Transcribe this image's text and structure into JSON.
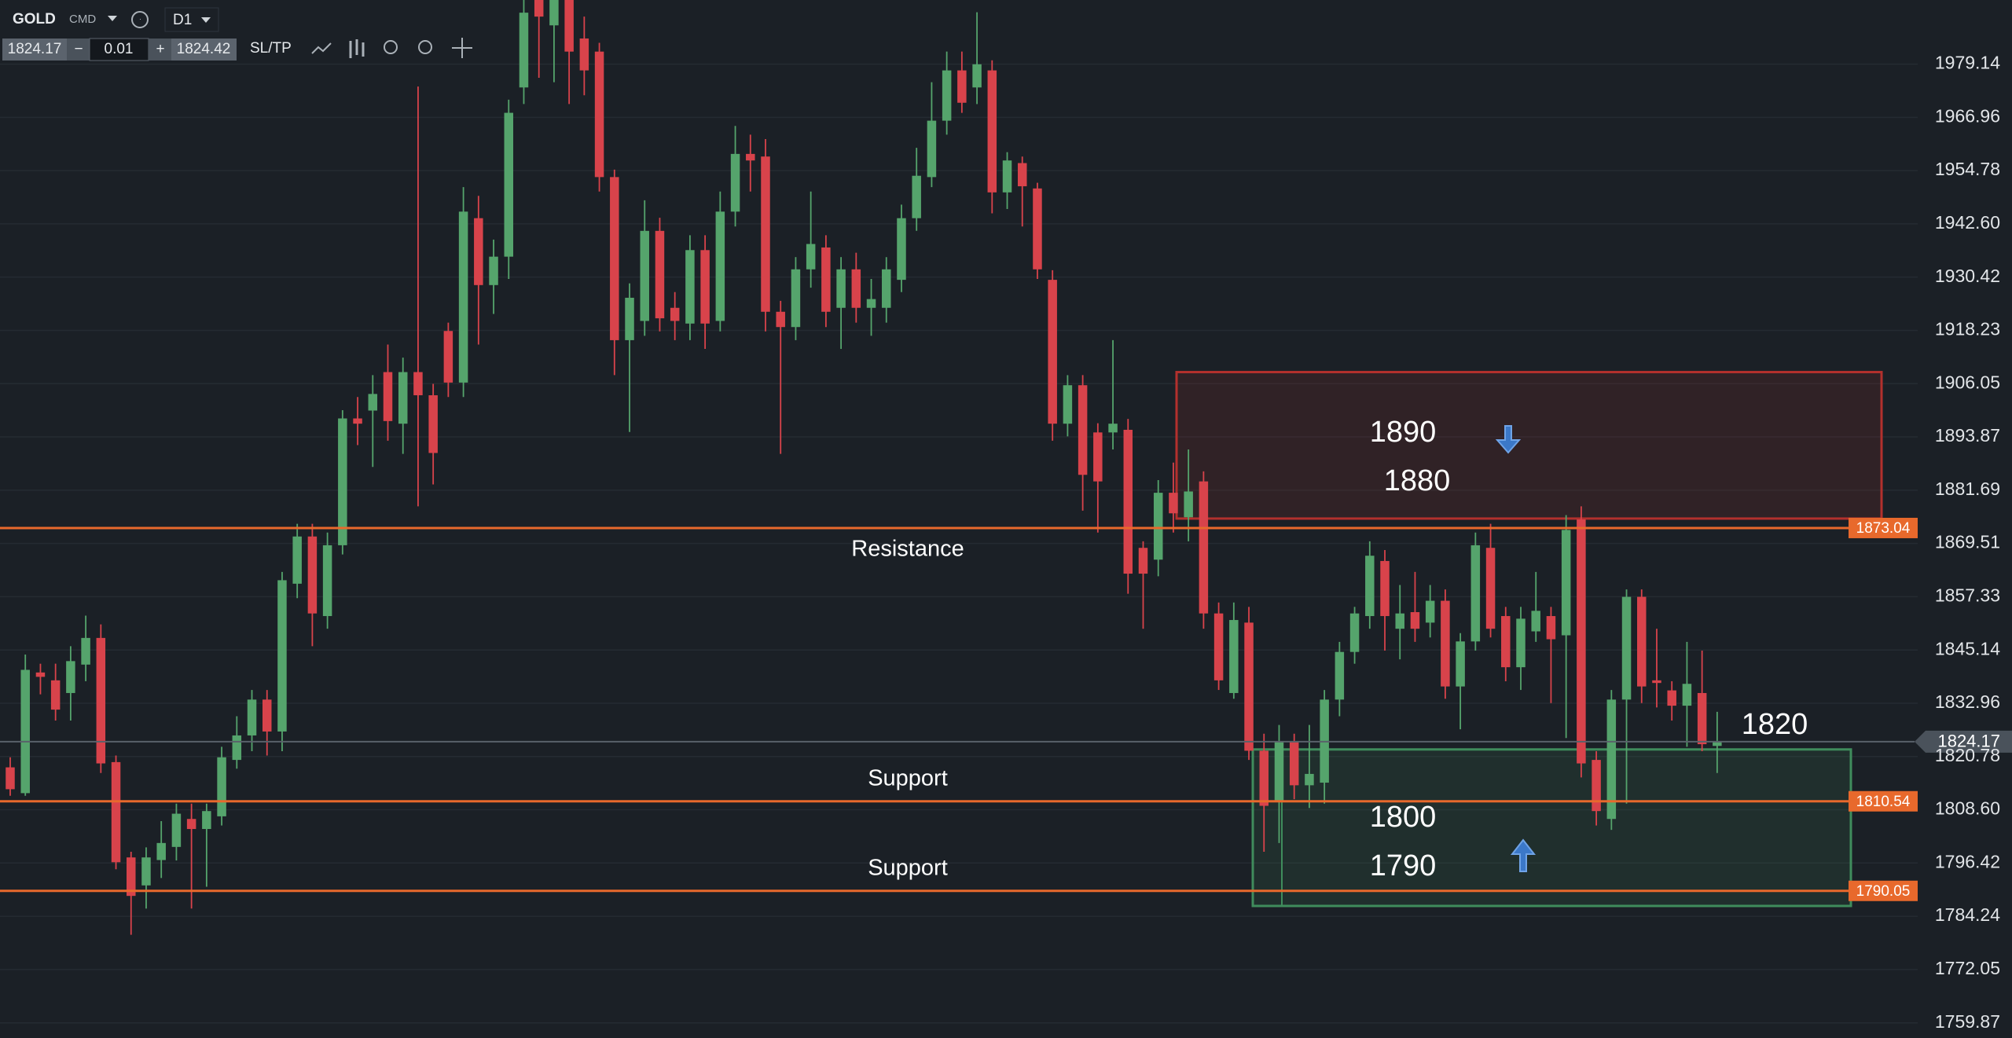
{
  "toolbar": {
    "symbol": "GOLD",
    "kind": "CMD",
    "timeframe": "D1",
    "bid": "1824.17",
    "minus": "−",
    "lot": "0.01",
    "plus": "+",
    "ask": "1824.42",
    "sltp": "SL/TP"
  },
  "chart_data": {
    "type": "candlestick",
    "up_color": "#55a46c",
    "down_color": "#d8434b",
    "grid": true,
    "ylim": [
      1756.4,
      1993.8
    ],
    "yticks": [
      1979.14,
      1966.96,
      1954.78,
      {
        "value": 1942.6,
        "label": "1942.60"
      },
      1930.42,
      1918.23,
      1906.05,
      1893.87,
      1881.69,
      1869.51,
      1857.33,
      1845.14,
      1832.96,
      1820.78,
      {
        "value": 1808.6,
        "label": "1808.60"
      },
      1796.42,
      1784.24,
      1772.05,
      1759.87
    ],
    "open": [
      1818.3,
      1812.4,
      1840,
      1838.2,
      1835.3,
      1841.8,
      1847.9,
      1819.5,
      1797.7,
      1791.3,
      1797.1,
      1800.1,
      1806.5,
      1804.2,
      1807.1,
      1820,
      1825.6,
      1833.8,
      1826.5,
      1860.3,
      1871.1,
      1852.9,
      1869.1,
      1898.1,
      1899.9,
      1908.7,
      1896.9,
      1908.7,
      1903.4,
      1918.1,
      1906.3,
      1943.9,
      1928.6,
      1935.1,
      1973.8,
      1996,
      1988,
      1996,
      1985,
      1982,
      1953.3,
      1916,
      1920.4,
      1941,
      1923.4,
      1919.8,
      1936.6,
      1920.4,
      1945.4,
      1958.6,
      1958,
      1922.5,
      1919,
      1932.2,
      1937.2,
      1923.4,
      1932.2,
      1923.4,
      1923.4,
      1929.8,
      1943.9,
      1953.3,
      1966.2,
      1977.7,
      1973.8,
      1977.7,
      1949.8,
      1956.5,
      1950.7,
      1929.8,
      1896.9,
      1905.7,
      1894.9,
      1894.9,
      1895.5,
      1868.5,
      1865.8,
      1881.1,
      1875.5,
      1883.7,
      1853.5,
      1835.3,
      1851.4,
      1822.1,
      1810.4,
      1824.1,
      1814.2,
      1814.8,
      1833.8,
      1844.7,
      1852.9,
      1865.5,
      1850,
      1853.8,
      1851.4,
      1856.4,
      1836.8,
      1847.1,
      1868.5,
      1852.9,
      1841.2,
      1849.4,
      1852.9,
      1848.5,
      1875,
      1820,
      1806.5,
      1833.8,
      1857.3,
      1838.2,
      1835.9,
      1832.4,
      1835.3,
      1823.2
    ],
    "high": [
      1820.6,
      1844.1,
      1842,
      1842,
      1846,
      1853,
      1851,
      1821,
      1799,
      1800,
      1806,
      1810,
      1810,
      1810,
      1823,
      1830,
      1836,
      1836,
      1863,
      1874,
      1874,
      1872,
      1900,
      1903,
      1908,
      1915,
      1912,
      1974,
      1906,
      1920,
      1951,
      1949,
      1939,
      1971,
      1996,
      2000,
      1998,
      2000,
      1990,
      1984,
      1955,
      1929,
      1948,
      1944,
      1927,
      1940,
      1940,
      1950,
      1965,
      1963,
      1962,
      1925,
      1935,
      1950,
      1940,
      1935,
      1936,
      1930,
      1935,
      1947,
      1960,
      1975,
      1982,
      1982,
      1991,
      1980,
      1959,
      1958,
      1952,
      1932,
      1908,
      1908,
      1897,
      1916,
      1898,
      1870,
      1884,
      1888,
      1891,
      1886,
      1856,
      1856,
      1855,
      1826,
      1828,
      1826,
      1828,
      1836,
      1847,
      1855,
      1870,
      1868,
      1860,
      1863,
      1860,
      1859,
      1849,
      1872,
      1874,
      1855,
      1855,
      1863,
      1855,
      1876,
      1878,
      1822,
      1836,
      1859,
      1859,
      1850,
      1838,
      1847,
      1845,
      1831
    ],
    "low": [
      1811.8,
      1811.8,
      1835,
      1829,
      1829,
      1838,
      1817,
      1795,
      1780,
      1786,
      1793,
      1797,
      1786,
      1791,
      1805,
      1818,
      1822,
      1821,
      1822,
      1857,
      1846,
      1850,
      1867,
      1892,
      1887,
      1893,
      1890,
      1878,
      1883,
      1903,
      1903,
      1915,
      1922,
      1930,
      1970,
      1976,
      1975,
      1970,
      1972,
      1950,
      1908,
      1895,
      1917,
      1918,
      1916,
      1916,
      1914,
      1918,
      1942,
      1950,
      1918,
      1890,
      1916,
      1928,
      1919,
      1914,
      1920,
      1917,
      1920,
      1927,
      1941,
      1951,
      1963,
      1968,
      1970,
      1945,
      1946,
      1942,
      1930,
      1893,
      1894,
      1877,
      1872,
      1891,
      1858,
      1850,
      1862,
      1872,
      1870,
      1850,
      1836,
      1834,
      1820,
      1799,
      1801,
      1811,
      1809,
      1810,
      1830,
      1842,
      1850,
      1845,
      1843,
      1847,
      1848,
      1834,
      1827,
      1845,
      1848,
      1838,
      1836,
      1847,
      1833,
      1825,
      1816,
      1805,
      1804,
      1810,
      1833,
      1832,
      1829,
      1823,
      1822,
      1817
    ],
    "close": [
      1813.3,
      1840.6,
      1839,
      1831.5,
      1842.6,
      1847.9,
      1819.2,
      1796.6,
      1788.9,
      1797.7,
      1801,
      1807.7,
      1804.2,
      1808.3,
      1820.6,
      1825.6,
      1833.8,
      1826.5,
      1861.1,
      1871.1,
      1853.5,
      1869.1,
      1898.1,
      1896.9,
      1903.7,
      1897.5,
      1908.7,
      1903.4,
      1890.2,
      1906.3,
      1945.4,
      1928.6,
      1935.1,
      1968,
      1990.9,
      1990,
      1995,
      1982,
      1977.7,
      1953.3,
      1916,
      1925.7,
      1941,
      1921,
      1920.4,
      1936.6,
      1919.8,
      1945.4,
      1958.6,
      1957.1,
      1922.5,
      1919,
      1932.2,
      1938,
      1922.5,
      1932.2,
      1923.4,
      1925.4,
      1932.2,
      1943.9,
      1953.6,
      1966.2,
      1977.7,
      1970.3,
      1979.1,
      1949.8,
      1957.1,
      1951.2,
      1932.2,
      1896.9,
      1905.7,
      1885.2,
      1883.7,
      1896.9,
      1862.6,
      1862.6,
      1881.1,
      1876.4,
      1881.4,
      1853.5,
      1838.2,
      1852,
      1822.1,
      1809.5,
      1824.1,
      1814.2,
      1816.8,
      1833.8,
      1844.7,
      1853.5,
      1866.7,
      1852.9,
      1853.5,
      1850,
      1856.4,
      1836.8,
      1847.1,
      1869.1,
      1850,
      1841.2,
      1852.3,
      1854.1,
      1847.6,
      1872.6,
      1819.2,
      1808.3,
      1833.8,
      1857.3,
      1836.8,
      1837.6,
      1832.4,
      1837.4,
      1823.6,
      1824.17
    ],
    "levels": [
      {
        "name": "Resistance",
        "value": 1873.04,
        "color": "#e8692c"
      },
      {
        "name": "Support",
        "value": 1810.54,
        "color": "#e8692c"
      },
      {
        "name": "Support",
        "value": 1790.05,
        "color": "#e8692c"
      }
    ],
    "current_price": 1824.17,
    "zones": [
      {
        "top": 1908.7,
        "bottom": 1875.2,
        "color": "#b3302d"
      },
      {
        "top": 1822.4,
        "bottom": 1786.6,
        "color": "#3f8c5c"
      }
    ],
    "annotations": [
      "1890",
      "1880",
      "1800",
      "1790",
      "1820"
    ]
  }
}
